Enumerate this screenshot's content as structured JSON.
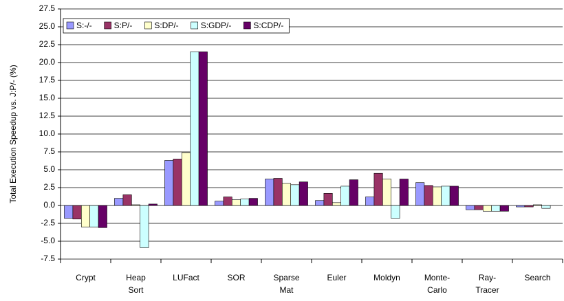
{
  "chart_data": {
    "type": "bar",
    "y_label": "Total Execution Speedup vs. J:P/- (%)",
    "categories": [
      "Crypt",
      "Heap Sort",
      "LUFact",
      "SOR",
      "Sparse Mat",
      "Euler",
      "Moldyn",
      "Monte-Carlo",
      "Ray-Tracer",
      "Search"
    ],
    "series": [
      {
        "name": "S:-/-",
        "color": "#9999ff",
        "values": [
          -1.8,
          1.0,
          6.3,
          0.6,
          3.7,
          0.7,
          1.2,
          3.2,
          -0.6,
          -0.2
        ]
      },
      {
        "name": "S:P/-",
        "color": "#993366",
        "values": [
          -1.9,
          1.5,
          6.5,
          1.2,
          3.8,
          1.7,
          4.5,
          2.8,
          -0.6,
          -0.2
        ]
      },
      {
        "name": "S:DP/-",
        "color": "#ffffcc",
        "values": [
          -3.0,
          0.1,
          7.4,
          0.8,
          3.1,
          0.4,
          3.7,
          2.6,
          -0.8,
          0.1
        ]
      },
      {
        "name": "S:GDP/-",
        "color": "#ccffff",
        "values": [
          -3.0,
          -5.9,
          21.5,
          0.9,
          2.9,
          2.7,
          -1.8,
          2.7,
          -0.8,
          -0.4
        ]
      },
      {
        "name": "S:CDP/-",
        "color": "#660066",
        "values": [
          -3.1,
          0.2,
          21.5,
          1.0,
          3.3,
          3.6,
          3.7,
          2.7,
          -0.8,
          0.0
        ]
      }
    ],
    "ylim": [
      -7.5,
      27.5
    ],
    "yticks": [
      -7.5,
      {
        "value": -5,
        "label": "-5.0"
      },
      -2.5,
      {
        "value": 0,
        "label": "0.0"
      },
      2.5,
      {
        "value": 5,
        "label": "5.0"
      },
      7.5,
      {
        "value": 10,
        "label": "10.0"
      },
      12.5,
      {
        "value": 15,
        "label": "15.0"
      },
      17.5,
      {
        "value": 20,
        "label": "20.0"
      },
      22.5,
      {
        "value": 25,
        "label": "25.0"
      },
      27.5
    ],
    "grid": true,
    "legend": "top-left"
  }
}
